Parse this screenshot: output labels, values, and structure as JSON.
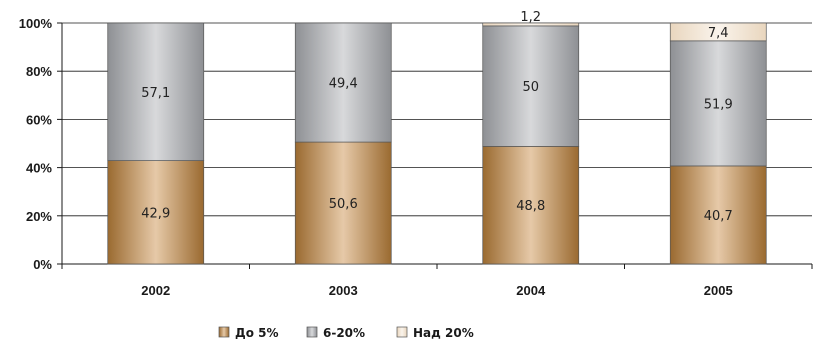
{
  "chart_data": {
    "type": "bar",
    "stacked": true,
    "percent": true,
    "categories": [
      "2002",
      "2003",
      "2004",
      "2005"
    ],
    "series": [
      {
        "name": "До 5%",
        "values": [
          42.9,
          50.6,
          48.8,
          40.7
        ],
        "labels": [
          "42,9",
          "50,6",
          "48,8",
          "40,7"
        ],
        "color": "#b8864a"
      },
      {
        "name": "6-20%",
        "values": [
          57.1,
          49.4,
          50,
          51.9
        ],
        "labels": [
          "57,1",
          "49,4",
          "50",
          "51,9"
        ],
        "color": "#a7a9ac"
      },
      {
        "name": "Над 20%",
        "values": [
          0,
          0,
          1.2,
          7.4
        ],
        "labels": [
          "",
          "",
          "1,2",
          "7,4"
        ],
        "color": "#ecdcc8"
      }
    ],
    "yticks": [
      "0%",
      "20%",
      "40%",
      "60%",
      "80%",
      "100%"
    ],
    "ylim": [
      0,
      100
    ],
    "grid": true,
    "legend": "bottom"
  }
}
